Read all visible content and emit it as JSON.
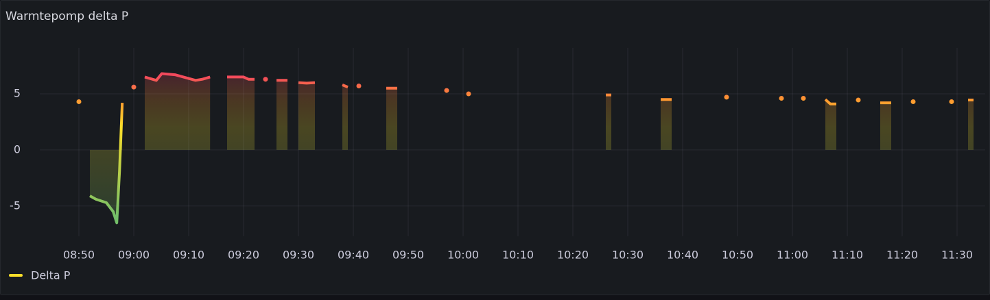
{
  "chart_data": {
    "type": "line",
    "title": "Warmtepomp delta P",
    "x": [
      530,
      null,
      532,
      533.1,
      535,
      536.25,
      536.9,
      537.4,
      537.9,
      null,
      540,
      null,
      542,
      544.1,
      545.1,
      547.5,
      551.25,
      552.5,
      553.9,
      null,
      557,
      560,
      560.9,
      562,
      null,
      564,
      null,
      566,
      568,
      null,
      570,
      571.5,
      573,
      null,
      578,
      579,
      null,
      581,
      null,
      586,
      588,
      null,
      597,
      null,
      601,
      null,
      626,
      627,
      null,
      636,
      638,
      null,
      648,
      null,
      658,
      null,
      662,
      null,
      666,
      666.9,
      668,
      null,
      672,
      null,
      676,
      678,
      null,
      682,
      null,
      689,
      null,
      692,
      693
    ],
    "series": [
      {
        "name": "Delta P",
        "color": "#fade2a",
        "values": [
          4.3,
          null,
          -4.1,
          -4.4,
          -4.7,
          -5.5,
          -6.5,
          -1.9,
          4.2,
          null,
          5.6,
          null,
          6.5,
          6.2,
          6.8,
          6.7,
          6.2,
          6.3,
          6.5,
          null,
          6.5,
          6.5,
          6.3,
          6.3,
          null,
          6.3,
          null,
          6.2,
          6.2,
          null,
          6.0,
          5.95,
          6.0,
          null,
          5.8,
          5.6,
          null,
          5.7,
          null,
          5.5,
          5.5,
          null,
          5.3,
          null,
          5.0,
          null,
          4.9,
          4.9,
          null,
          4.5,
          4.5,
          null,
          4.7,
          null,
          4.6,
          null,
          4.6,
          null,
          4.5,
          4.1,
          4.1,
          null,
          4.45,
          null,
          4.2,
          4.2,
          null,
          4.3,
          null,
          4.3,
          null,
          4.45,
          4.45
        ]
      }
    ],
    "xlim": [
      522.875,
      695.125
    ],
    "xticks": [
      {
        "value": 530,
        "label": "08:50"
      },
      {
        "value": 540,
        "label": "09:00"
      },
      {
        "value": 550,
        "label": "09:10"
      },
      {
        "value": 560,
        "label": "09:20"
      },
      {
        "value": 570,
        "label": "09:30"
      },
      {
        "value": 580,
        "label": "09:40"
      },
      {
        "value": 590,
        "label": "09:50"
      },
      {
        "value": 600,
        "label": "10:00"
      },
      {
        "value": 610,
        "label": "10:10"
      },
      {
        "value": 620,
        "label": "10:20"
      },
      {
        "value": 630,
        "label": "10:30"
      },
      {
        "value": 640,
        "label": "10:40"
      },
      {
        "value": 650,
        "label": "10:50"
      },
      {
        "value": 660,
        "label": "11:00"
      },
      {
        "value": 670,
        "label": "11:10"
      },
      {
        "value": 680,
        "label": "11:20"
      },
      {
        "value": 690,
        "label": "11:30"
      }
    ],
    "ylim": [
      -7.7,
      9.7
    ],
    "yticks": [
      -5,
      0,
      5
    ],
    "grid": true
  }
}
